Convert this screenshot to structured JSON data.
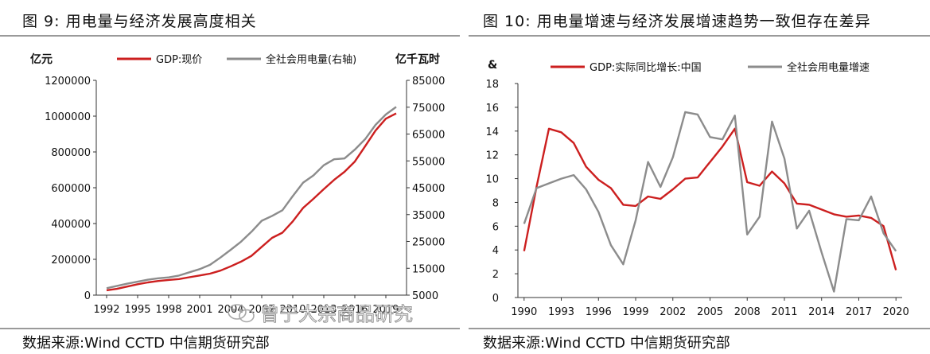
{
  "left": {
    "title": "图 9:    用电量与经济发展高度相关",
    "source": "数据来源:Wind CCTD 中信期货研究部"
  },
  "right": {
    "title": "图 10:        用电量增速与经济发展增速趋势一致但存在差异",
    "source": "数据来源:Wind CCTD 中信期货研究部",
    "watermark_text": "曾宁大宗商品研究"
  },
  "colors": {
    "red": "#cc1f1f",
    "gray": "#8c8c8c"
  },
  "chart_data": [
    {
      "type": "line",
      "legend_position": "top",
      "grid": false,
      "y_unit_left": "亿元",
      "y_unit_right": "亿千瓦时",
      "ylim_left": [
        0,
        1200000
      ],
      "ylim_right": [
        5000,
        85000
      ],
      "yticks_left": [
        "0",
        "200000",
        "400000",
        "600000",
        "800000",
        "1000000",
        "1200000"
      ],
      "yticks_right": [
        "5000",
        "15000",
        "25000",
        "35000",
        "45000",
        "55000",
        "65000",
        "75000",
        "85000"
      ],
      "xlim": [
        1991,
        2021
      ],
      "xticks": [
        "1992",
        "1995",
        "1998",
        "2001",
        "2004",
        "2007",
        "2010",
        "2013",
        "2016",
        "2019"
      ],
      "x": [
        1992,
        1993,
        1994,
        1995,
        1996,
        1997,
        1998,
        1999,
        2000,
        2001,
        2002,
        2003,
        2004,
        2005,
        2006,
        2007,
        2008,
        2009,
        2010,
        2011,
        2012,
        2013,
        2014,
        2015,
        2016,
        2017,
        2018,
        2019,
        2020
      ],
      "series": [
        {
          "name": "GDP:现价",
          "axis": "left",
          "color": "#cc1f1f",
          "values": [
            27000,
            35000,
            48000,
            61000,
            71000,
            79000,
            85000,
            90000,
            100000,
            110000,
            120000,
            137000,
            161000,
            187000,
            219000,
            270000,
            320000,
            349000,
            412000,
            487000,
            538000,
            592000,
            644000,
            689000,
            746000,
            832000,
            919000,
            986000,
            1015000
          ]
        },
        {
          "name": "全社会用电量(右轴)",
          "axis": "right",
          "color": "#8c8c8c",
          "values": [
            7590,
            8430,
            9260,
            10020,
            10760,
            11280,
            11600,
            12300,
            13500,
            14700,
            16300,
            19000,
            21900,
            24900,
            28600,
            32700,
            34500,
            36600,
            41900,
            46900,
            49600,
            53400,
            55600,
            55900,
            59200,
            63100,
            68400,
            72300,
            75100
          ]
        }
      ]
    },
    {
      "type": "line",
      "legend_position": "top",
      "grid": false,
      "y_unit_left": "&",
      "ylim": [
        0,
        18
      ],
      "yticks": [
        "0",
        "2",
        "4",
        "6",
        "8",
        "10",
        "12",
        "14",
        "16",
        "18"
      ],
      "xlim": [
        1989.5,
        2020.5
      ],
      "xticks": [
        "1990",
        "1993",
        "1996",
        "1999",
        "2002",
        "2005",
        "2008",
        "2011",
        "2014",
        "2017",
        "2020"
      ],
      "x": [
        1990,
        1991,
        1992,
        1993,
        1994,
        1995,
        1996,
        1997,
        1998,
        1999,
        2000,
        2001,
        2002,
        2003,
        2004,
        2005,
        2006,
        2007,
        2008,
        2009,
        2010,
        2011,
        2012,
        2013,
        2014,
        2015,
        2016,
        2017,
        2018,
        2019,
        2020
      ],
      "series": [
        {
          "name": "GDP:实际同比增长:中国",
          "color": "#cc1f1f",
          "values": [
            3.9,
            9.3,
            14.2,
            13.9,
            13.0,
            11.0,
            9.9,
            9.2,
            7.8,
            7.7,
            8.5,
            8.3,
            9.1,
            10.0,
            10.1,
            11.4,
            12.7,
            14.2,
            9.7,
            9.4,
            10.6,
            9.6,
            7.9,
            7.8,
            7.4,
            7.0,
            6.8,
            6.9,
            6.7,
            6.0,
            2.3
          ]
        },
        {
          "name": "全社会用电量增速",
          "color": "#8c8c8c",
          "values": [
            6.2,
            9.2,
            9.6,
            10.0,
            10.3,
            9.1,
            7.2,
            4.4,
            2.8,
            6.5,
            11.4,
            9.3,
            11.8,
            15.6,
            15.4,
            13.5,
            13.3,
            15.3,
            5.3,
            6.8,
            14.8,
            11.7,
            5.8,
            7.3,
            3.8,
            0.5,
            6.6,
            6.5,
            8.5,
            5.4,
            3.9
          ]
        }
      ]
    }
  ]
}
